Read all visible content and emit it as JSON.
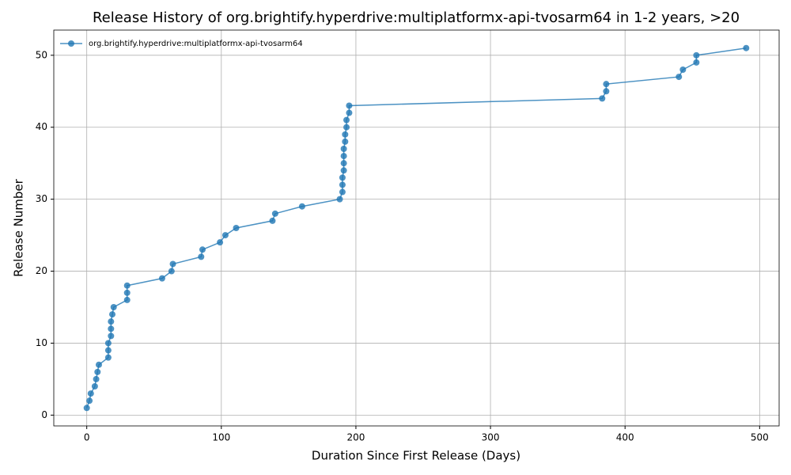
{
  "chart_data": {
    "type": "line",
    "title": "Release History of org.brightify.hyperdrive:multiplatformx-api-tvosarm64 in 1-2 years, >20",
    "x_label": "Duration Since First Release (Days)",
    "y_label": "Release Number",
    "x": [
      0,
      2,
      3,
      6,
      7,
      8,
      9,
      16,
      16,
      16,
      18,
      18,
      18,
      19,
      20,
      30,
      30,
      30,
      56,
      63,
      64,
      85,
      86,
      99,
      103,
      111,
      138,
      140,
      160,
      188,
      190,
      190,
      190,
      191,
      191,
      191,
      191,
      192,
      192,
      193,
      193,
      195,
      195,
      383,
      386,
      386,
      440,
      443,
      453,
      453,
      490
    ],
    "series": [
      {
        "name": "org.brightify.hyperdrive:multiplatformx-api-tvosarm64",
        "color": "#1f77b4",
        "values": [
          1,
          2,
          3,
          4,
          5,
          6,
          7,
          8,
          9,
          10,
          11,
          12,
          13,
          14,
          15,
          16,
          17,
          18,
          19,
          20,
          21,
          22,
          23,
          24,
          25,
          26,
          27,
          28,
          29,
          30,
          31,
          32,
          33,
          34,
          35,
          36,
          37,
          38,
          39,
          40,
          41,
          42,
          43,
          44,
          45,
          46,
          47,
          48,
          49,
          50,
          51
        ]
      }
    ],
    "xlim": [
      -24.5,
      514.5
    ],
    "ylim": [
      -1.5,
      53.5
    ],
    "xticks": [
      0,
      100,
      200,
      300,
      400,
      500
    ],
    "yticks": [
      0,
      10,
      20,
      30,
      40,
      50
    ],
    "grid": true,
    "legend": "upper-left"
  }
}
